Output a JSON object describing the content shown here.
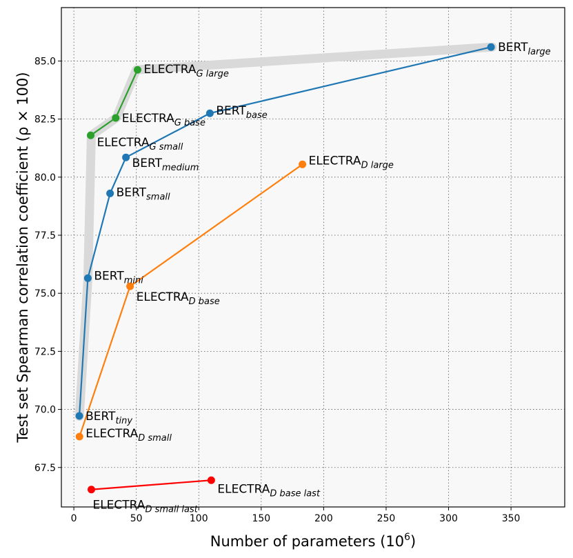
{
  "chart_data": {
    "type": "line",
    "title": "",
    "xlabel": "Number of parameters",
    "xlabel_unit_base": "10",
    "xlabel_unit_exp": "6",
    "ylabel": "Test set Spearman correlation coefficient (ρ × 100)",
    "xlim": [
      -10,
      393
    ],
    "ylim": [
      65.8,
      87.3
    ],
    "xticks": [
      0,
      50,
      100,
      150,
      200,
      250,
      300,
      350
    ],
    "xtick_labels": [
      "0",
      "50",
      "100",
      "150",
      "200",
      "250",
      "300",
      "350"
    ],
    "yticks": [
      67.5,
      70.0,
      72.5,
      75.0,
      77.5,
      80.0,
      82.5,
      85.0
    ],
    "ytick_labels": [
      "67.5",
      "70.0",
      "72.5",
      "75.0",
      "77.5",
      "80.0",
      "82.5",
      "85.0"
    ],
    "grid": true,
    "pareto_front": {
      "color": "#d9d9d9",
      "x": [
        4.4,
        11.2,
        14,
        34,
        50,
        335
      ],
      "y": [
        69.7,
        75.6,
        81.8,
        82.55,
        84.62,
        85.6
      ]
    },
    "series": [
      {
        "name": "BERT",
        "color": "#1f77b4",
        "points": [
          {
            "x": 4.4,
            "y": 69.72,
            "base": "BERT",
            "sub": "tiny"
          },
          {
            "x": 11.2,
            "y": 75.65,
            "base": "BERT",
            "sub": "mini"
          },
          {
            "x": 29,
            "y": 79.3,
            "base": "BERT",
            "sub": "small"
          },
          {
            "x": 41.7,
            "y": 80.85,
            "base": "BERT",
            "sub": "medium"
          },
          {
            "x": 108.9,
            "y": 82.75,
            "base": "BERT",
            "sub": "base"
          },
          {
            "x": 334,
            "y": 85.6,
            "base": "BERT",
            "sub": "large"
          }
        ]
      },
      {
        "name": "ELECTRA-G",
        "color": "#2ca02c",
        "points": [
          {
            "x": 13.5,
            "y": 81.8,
            "base": "ELECTRA",
            "sub": "G small"
          },
          {
            "x": 33.5,
            "y": 82.55,
            "base": "ELECTRA",
            "sub": "G base"
          },
          {
            "x": 51,
            "y": 84.62,
            "base": "ELECTRA",
            "sub": "G large"
          }
        ]
      },
      {
        "name": "ELECTRA-D",
        "color": "#ff7f0e",
        "points": [
          {
            "x": 4.5,
            "y": 68.83,
            "base": "ELECTRA",
            "sub": "D small"
          },
          {
            "x": 45,
            "y": 75.3,
            "base": "ELECTRA",
            "sub": "D base"
          },
          {
            "x": 183,
            "y": 80.55,
            "base": "ELECTRA",
            "sub": "D large"
          }
        ]
      },
      {
        "name": "ELECTRA-D last",
        "color": "#ff0000",
        "points": [
          {
            "x": 14,
            "y": 66.55,
            "base": "ELECTRA",
            "sub": "D small last"
          },
          {
            "x": 110,
            "y": 66.95,
            "base": "ELECTRA",
            "sub": "D base last"
          }
        ]
      }
    ]
  }
}
